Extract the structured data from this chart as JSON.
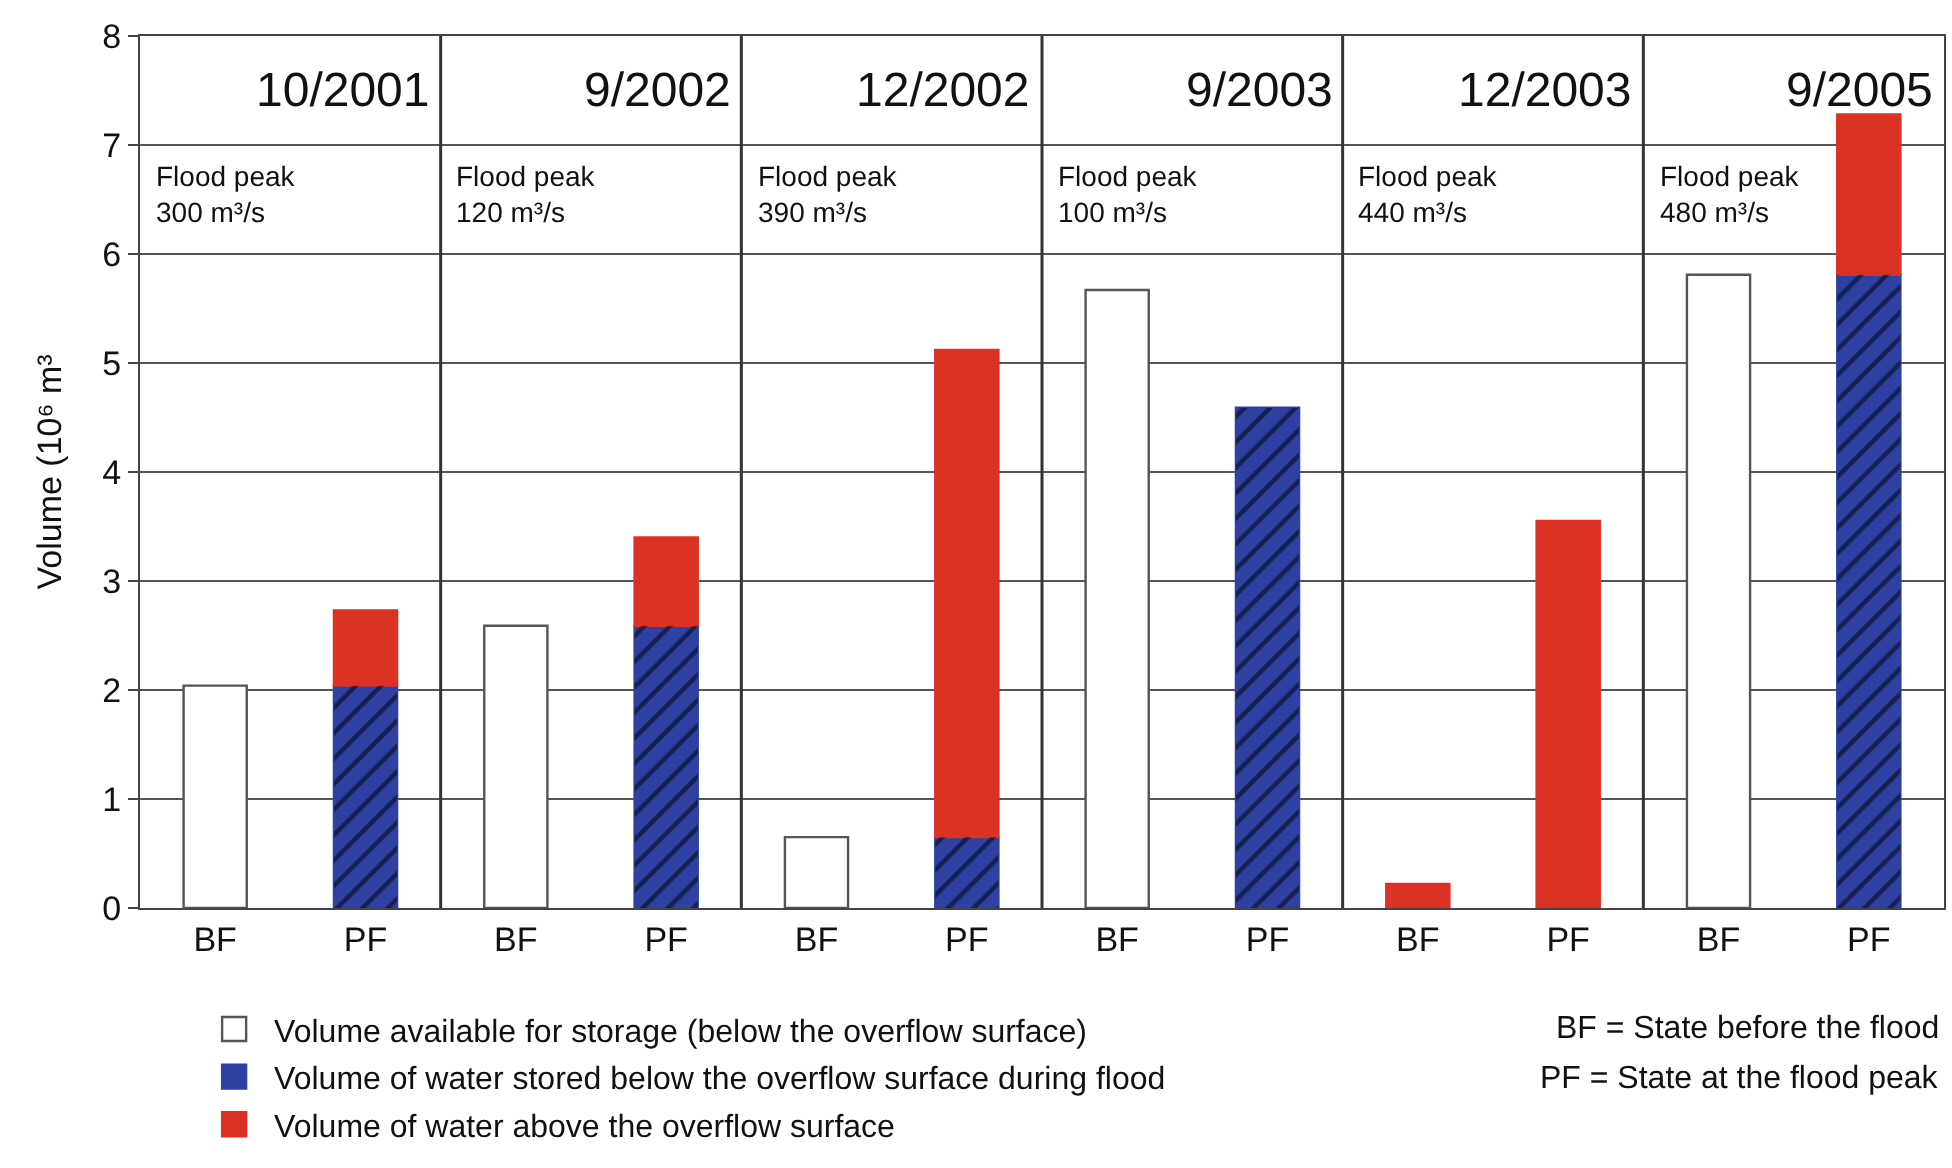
{
  "chart_data": {
    "type": "bar",
    "stacked": true,
    "ylabel": "Volume (10⁶ m³",
    "categories": [
      "BF",
      "PF",
      "BF",
      "PF",
      "BF",
      "PF",
      "BF",
      "PF",
      "BF",
      "PF",
      "BF",
      "PF"
    ],
    "series": [
      {
        "name": "Volume available for storage (below the overflow surface)",
        "color": "#ffffff",
        "values": [
          2.04,
          null,
          2.59,
          null,
          0.65,
          null,
          5.67,
          null,
          null,
          null,
          5.81,
          null
        ]
      },
      {
        "name": "Volume of water stored below the overflow surface during flood",
        "color": "#2e41a3",
        "values": [
          null,
          2.04,
          null,
          2.59,
          null,
          0.65,
          null,
          4.59,
          null,
          null,
          null,
          5.81
        ]
      },
      {
        "name": "Volume of water above the overflow surface",
        "color": "#dc3224",
        "values": [
          null,
          0.69,
          null,
          0.81,
          null,
          4.47,
          null,
          null,
          0.22,
          3.55,
          null,
          1.47
        ]
      }
    ],
    "ylim": [
      0,
      8
    ],
    "yticks": [
      0,
      1,
      2,
      3,
      4,
      5,
      6,
      7,
      8
    ],
    "grid": true,
    "legend": "bottom left",
    "annotations": [
      "10/2001",
      "9/2002",
      "12/2002",
      "9/2003",
      "12/2003",
      "9/2005",
      "Flood peak\n300 m³/s",
      "Flood peak\n120 m³/s",
      "Flood peak\n390 m³/s",
      "Flood peak\n100 m³/s",
      "Flood peak\n440 m³/s",
      "Flood peak\n480 m³/s",
      "BF = State before the flood",
      "PF = State at the flood peak"
    ]
  }
}
